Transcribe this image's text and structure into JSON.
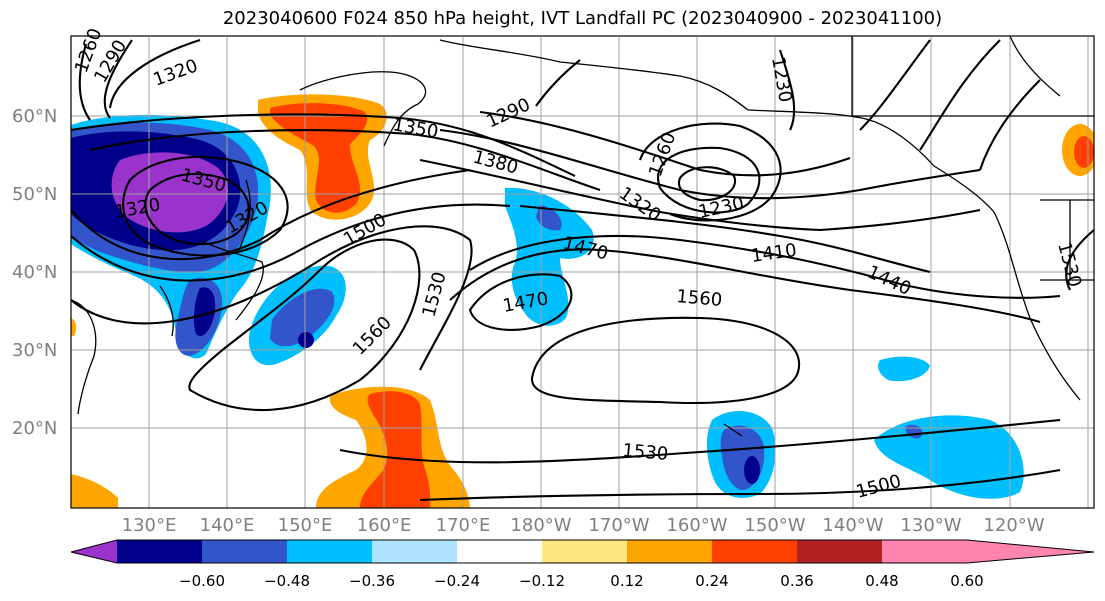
{
  "title": "2023040600 F024 850 hPa height, IVT Landfall PC (2023040900 - 2023041100)",
  "lat_labels": [
    "60°N",
    "50°N",
    "40°N",
    "30°N",
    "20°N"
  ],
  "lon_labels": [
    "130°E",
    "140°E",
    "150°E",
    "160°E",
    "170°E",
    "180°W",
    "170°W",
    "160°W",
    "150°W",
    "140°W",
    "130°W",
    "120°W"
  ],
  "colorbar": {
    "ticks": [
      "−0.60",
      "−0.48",
      "−0.36",
      "−0.24",
      "−0.12",
      "0.12",
      "0.24",
      "0.36",
      "0.48",
      "0.60"
    ],
    "colors": [
      "#9933cc",
      "#00008b",
      "#3355cc",
      "#00bfff",
      "#aee2ff",
      "#ffffff",
      "#ffe680",
      "#ffa500",
      "#ff4000",
      "#b22222",
      "#ff85b0"
    ]
  },
  "contour_labels": [
    "1260",
    "1290",
    "1320",
    "1350",
    "1350",
    "1320",
    "1320",
    "1290",
    "1380",
    "1320",
    "1260",
    "1230",
    "1230",
    "1500",
    "1470",
    "1470",
    "1410",
    "1440",
    "1530",
    "1560",
    "1560",
    "1530",
    "1500",
    "1530"
  ]
}
